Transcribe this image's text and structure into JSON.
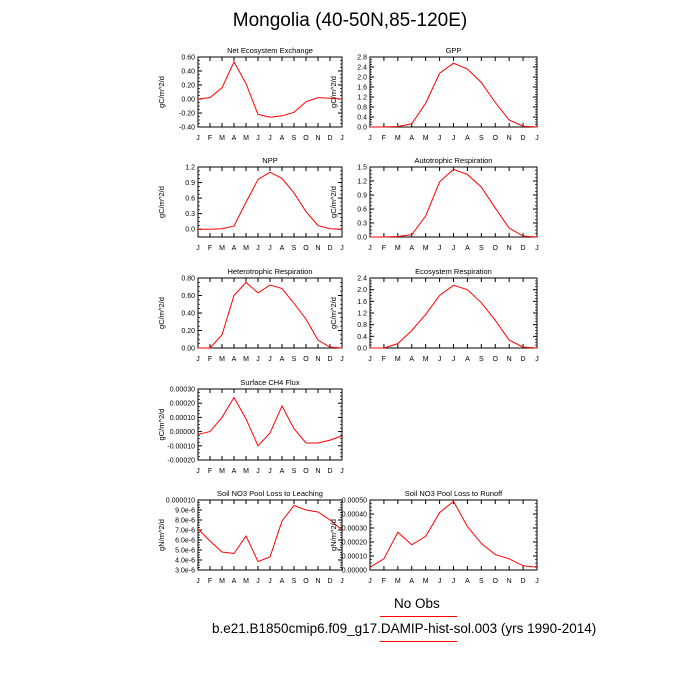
{
  "title": "Mongolia (40-50N,85-120E)",
  "legend": {
    "obs_label": "No Obs",
    "model_label": "b.e21.B1850cmip6.f09_g17.DAMIP-hist-sol.003 (yrs 1990-2014)",
    "line_color": "#ff0000"
  },
  "chart_data": [
    {
      "type": "line",
      "title": "Net Ecosystem Exchange",
      "ylabel": "gC/m^2/d",
      "categories": [
        "J",
        "F",
        "M",
        "A",
        "M",
        "J",
        "J",
        "A",
        "S",
        "O",
        "N",
        "D",
        "J"
      ],
      "ylim": [
        -0.4,
        0.6
      ],
      "yticks": [
        "0.60",
        "0.40",
        "0.20",
        "0.00",
        "-0.20",
        "-0.40"
      ],
      "series": [
        {
          "values": [
            0.0,
            0.02,
            0.16,
            0.53,
            0.22,
            -0.22,
            -0.26,
            -0.24,
            -0.19,
            -0.04,
            0.02,
            0.01,
            0.0
          ]
        }
      ]
    },
    {
      "type": "line",
      "title": "GPP",
      "ylabel": "gC/m^2/d",
      "categories": [
        "J",
        "F",
        "M",
        "A",
        "M",
        "J",
        "J",
        "A",
        "S",
        "O",
        "N",
        "D",
        "J"
      ],
      "ylim": [
        0.0,
        2.8
      ],
      "yticks": [
        "2.8",
        "2.4",
        "2.0",
        "1.6",
        "1.2",
        "0.8",
        "0.4",
        "0.0"
      ],
      "series": [
        {
          "values": [
            0.0,
            0.0,
            0.02,
            0.13,
            0.95,
            2.15,
            2.55,
            2.32,
            1.78,
            0.98,
            0.28,
            0.03,
            0.0
          ]
        }
      ]
    },
    {
      "type": "line",
      "title": "NPP",
      "ylabel": "gC/m^2/d",
      "categories": [
        "J",
        "F",
        "M",
        "A",
        "M",
        "J",
        "J",
        "A",
        "S",
        "O",
        "N",
        "D",
        "J"
      ],
      "ylim": [
        -0.15,
        1.2
      ],
      "yticks": [
        "1.2",
        "0.9",
        "0.6",
        "0.3",
        "0.0"
      ],
      "series": [
        {
          "values": [
            0.0,
            0.0,
            0.01,
            0.06,
            0.52,
            0.96,
            1.1,
            0.98,
            0.7,
            0.34,
            0.07,
            0.01,
            0.0
          ]
        }
      ]
    },
    {
      "type": "line",
      "title": "Autotrophic Respiration",
      "ylabel": "gC/m^2/d",
      "categories": [
        "J",
        "F",
        "M",
        "A",
        "M",
        "J",
        "J",
        "A",
        "S",
        "O",
        "N",
        "D",
        "J"
      ],
      "ylim": [
        0.0,
        1.5
      ],
      "yticks": [
        "1.5",
        "1.2",
        "0.9",
        "0.6",
        "0.3",
        "0.0"
      ],
      "series": [
        {
          "values": [
            0.0,
            0.0,
            0.01,
            0.05,
            0.45,
            1.18,
            1.45,
            1.34,
            1.07,
            0.62,
            0.19,
            0.02,
            0.0
          ]
        }
      ]
    },
    {
      "type": "line",
      "title": "Heterotrophic Respiration",
      "ylabel": "gC/m^2/d",
      "categories": [
        "J",
        "F",
        "M",
        "A",
        "M",
        "J",
        "J",
        "A",
        "S",
        "O",
        "N",
        "D",
        "J"
      ],
      "ylim": [
        0.0,
        0.8
      ],
      "yticks": [
        "0.80",
        "0.60",
        "0.40",
        "0.20",
        "0.00"
      ],
      "series": [
        {
          "values": [
            0.0,
            0.0,
            0.15,
            0.6,
            0.75,
            0.63,
            0.72,
            0.68,
            0.51,
            0.33,
            0.09,
            0.01,
            0.0
          ]
        }
      ]
    },
    {
      "type": "line",
      "title": "Ecosystem Respiration",
      "ylabel": "gC/m^2/d",
      "categories": [
        "J",
        "F",
        "M",
        "A",
        "M",
        "J",
        "J",
        "A",
        "S",
        "O",
        "N",
        "D",
        "J"
      ],
      "ylim": [
        0.0,
        2.4
      ],
      "yticks": [
        "2.4",
        "2.0",
        "1.6",
        "1.2",
        "0.8",
        "0.4",
        "0.0"
      ],
      "series": [
        {
          "values": [
            0.0,
            0.0,
            0.15,
            0.6,
            1.15,
            1.8,
            2.15,
            2.0,
            1.55,
            0.95,
            0.27,
            0.03,
            0.0
          ]
        }
      ]
    },
    {
      "type": "line",
      "title": "Surface CH4 Flux",
      "ylabel": "gC/m^2/d",
      "categories": [
        "J",
        "F",
        "M",
        "A",
        "M",
        "J",
        "J",
        "A",
        "S",
        "O",
        "N",
        "D",
        "J"
      ],
      "ylim": [
        -0.0002,
        0.0003
      ],
      "yticks": [
        "0.00030",
        "0.00020",
        "0.00010",
        "0.00000",
        "-0.00010",
        "-0.00020"
      ],
      "series": [
        {
          "values": [
            -2e-05,
            0.0,
            0.0001,
            0.00024,
            9e-05,
            -0.0001,
            -1e-05,
            0.00018,
            2e-05,
            -8e-05,
            -8e-05,
            -6e-05,
            -3e-05
          ]
        }
      ]
    },
    {
      "type": "line",
      "title": "Soil NO3 Pool Loss to Leaching",
      "ylabel": "gN/m^2/d",
      "categories": [
        "J",
        "F",
        "M",
        "A",
        "M",
        "J",
        "J",
        "A",
        "S",
        "O",
        "N",
        "D",
        "J"
      ],
      "ylim": [
        3e-06,
        1e-05
      ],
      "yticks": [
        "0.000010",
        "9.0e-6",
        "8.0e-6",
        "7.0e-6",
        "6.0e-6",
        "5.0e-6",
        "4.0e-6",
        "3.0e-6"
      ],
      "series": [
        {
          "values": [
            7.1e-06,
            5.9e-06,
            4.8e-06,
            4.65e-06,
            6.4e-06,
            3.85e-06,
            4.3e-06,
            7.9e-06,
            9.45e-06,
            9e-06,
            8.8e-06,
            8e-06,
            7e-06
          ]
        }
      ]
    },
    {
      "type": "line",
      "title": "Soil NO3 Pool Loss to Runoff",
      "ylabel": "gN/m^2/d",
      "categories": [
        "J",
        "F",
        "M",
        "A",
        "M",
        "J",
        "J",
        "A",
        "S",
        "O",
        "N",
        "D",
        "J"
      ],
      "ylim": [
        0.0,
        0.0005
      ],
      "yticks": [
        "0.00050",
        "0.00040",
        "0.00030",
        "0.00020",
        "0.00010",
        "0.00000"
      ],
      "series": [
        {
          "values": [
            2e-05,
            8e-05,
            0.00027,
            0.00018,
            0.00024,
            0.00041,
            0.00049,
            0.00031,
            0.00019,
            0.00011,
            8e-05,
            3e-05,
            2e-05
          ]
        }
      ]
    }
  ]
}
